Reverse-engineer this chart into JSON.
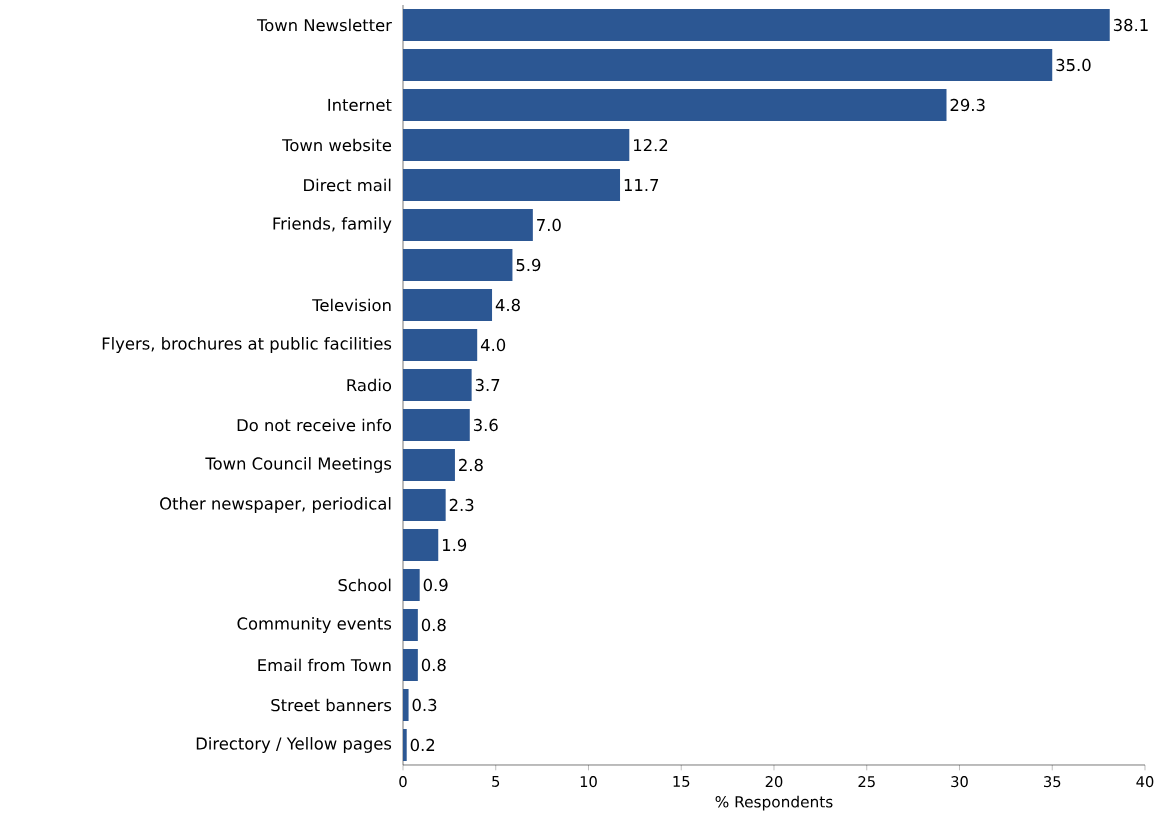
{
  "chart_data": {
    "type": "bar",
    "orientation": "horizontal",
    "categories": [
      "Town Newsletter",
      null,
      "Internet",
      "Town website",
      "Direct mail",
      "Friends, family",
      null,
      "Television",
      "Flyers, brochures at public facilities",
      "Radio",
      "Do not receive info",
      "Town Council Meetings",
      "Other newspaper, periodical",
      null,
      "School",
      "Community events",
      "Email from Town",
      "Street banners",
      "Directory / Yellow pages"
    ],
    "values": [
      38.1,
      35.0,
      29.3,
      12.2,
      11.7,
      7.0,
      5.9,
      4.8,
      4.0,
      3.7,
      3.6,
      2.8,
      2.3,
      1.9,
      0.9,
      0.8,
      0.8,
      0.3,
      0.2
    ],
    "value_labels": [
      "38.1",
      "35.0",
      "29.3",
      "12.2",
      "11.7",
      "7.0",
      "5.9",
      "4.8",
      "4.0",
      "3.7",
      "3.6",
      "2.8",
      "2.3",
      "1.9",
      "0.9",
      "0.8",
      "0.8",
      "0.3",
      "0.2"
    ],
    "color": "#2c5793",
    "xlim": [
      0,
      40
    ],
    "xticks": [
      0,
      5,
      10,
      15,
      20,
      25,
      30,
      35,
      40
    ],
    "xlabel": "% Respondents"
  }
}
